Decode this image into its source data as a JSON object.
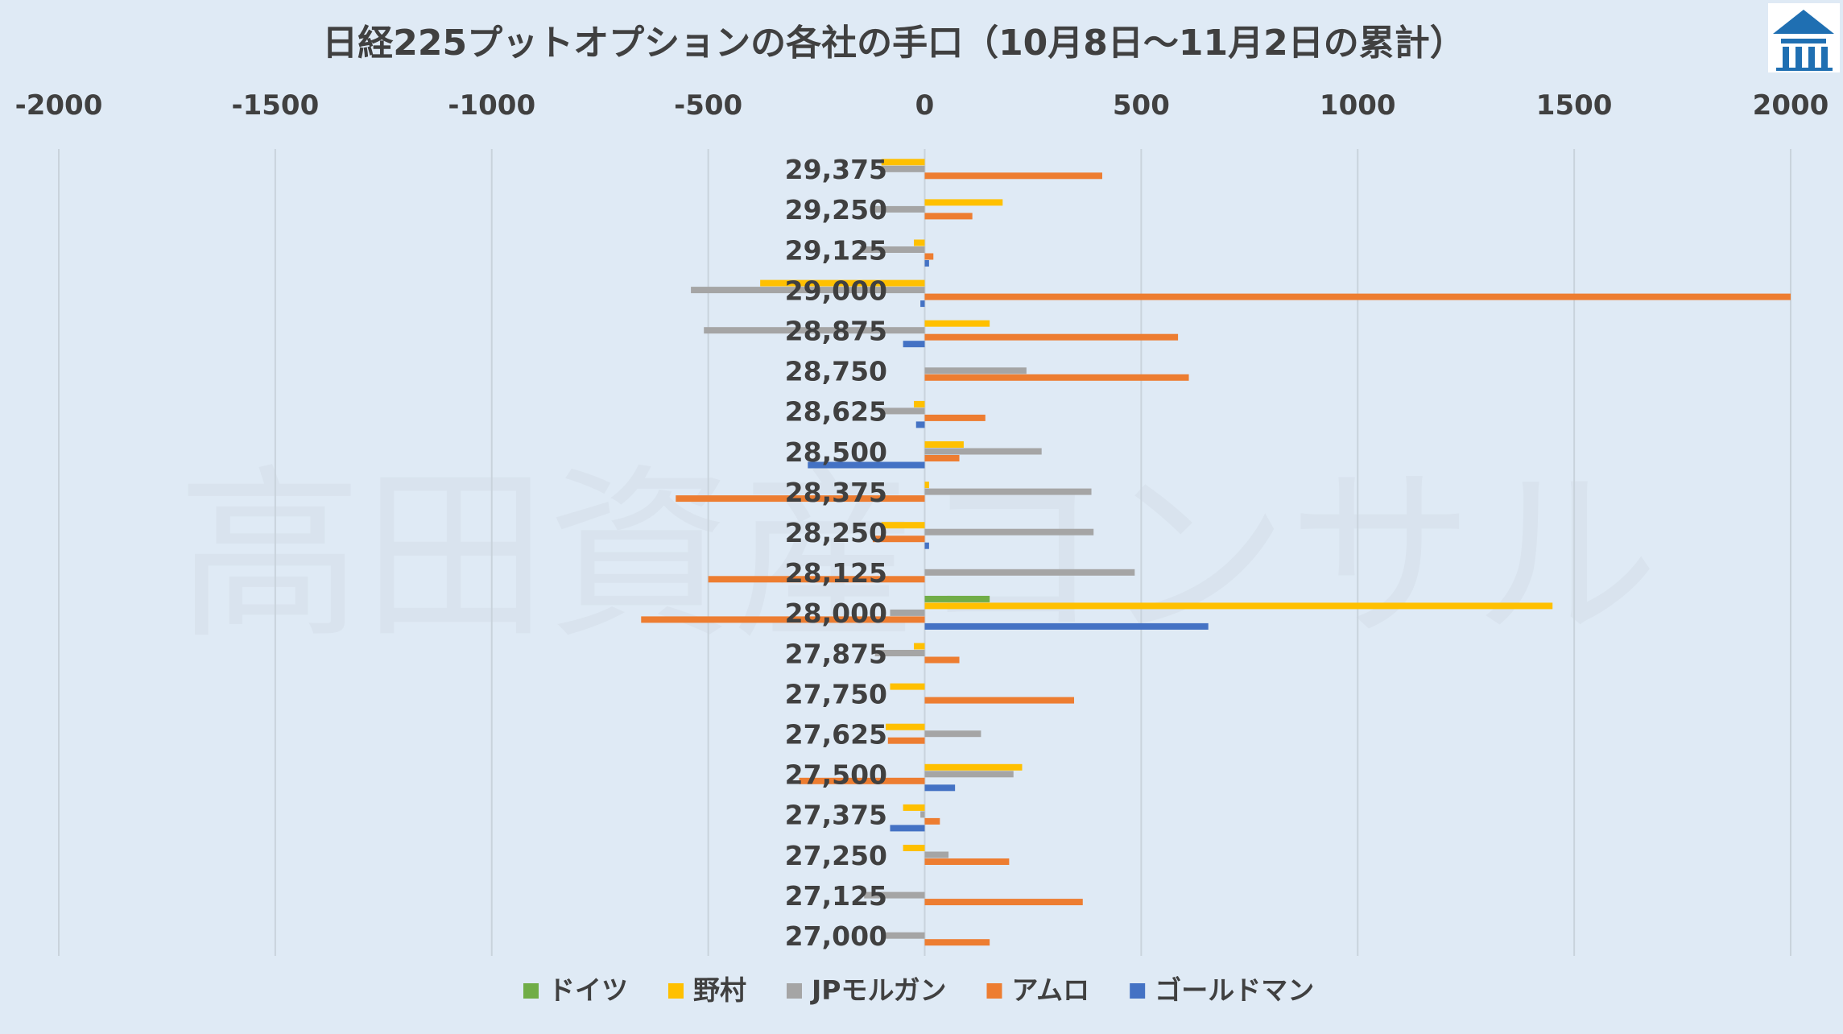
{
  "chart_data": {
    "type": "bar",
    "orientation": "horizontal",
    "title": "日経225プットオプションの各社の手口（10月8日～11月2日の累計）",
    "watermark": "高田資産コンサル",
    "xlim": [
      -2000,
      2000
    ],
    "xticks": [
      -2000,
      -1500,
      -1000,
      -500,
      0,
      500,
      1000,
      1500,
      2000
    ],
    "xtick_labels": [
      "-2000",
      "-1500",
      "-1000",
      "-500",
      "0",
      "500",
      "1000",
      "1500",
      "2000"
    ],
    "axis_position": "top",
    "grid": "vertical",
    "legend_position": "bottom",
    "categories": [
      "29,375",
      "29,250",
      "29,125",
      "29,000",
      "28,875",
      "28,750",
      "28,625",
      "28,500",
      "28,375",
      "28,250",
      "28,125",
      "28,000",
      "27,875",
      "27,750",
      "27,625",
      "27,500",
      "27,375",
      "27,250",
      "27,125",
      "27,000"
    ],
    "series": [
      {
        "name": "ドイツ",
        "color": "#70ad47",
        "values": [
          0,
          0,
          0,
          0,
          0,
          0,
          0,
          0,
          0,
          0,
          0,
          150,
          0,
          0,
          0,
          0,
          0,
          0,
          0,
          0
        ]
      },
      {
        "name": "野村",
        "color": "#ffc000",
        "values": [
          -100,
          180,
          -25,
          -380,
          150,
          0,
          -25,
          90,
          10,
          -100,
          0,
          1450,
          -25,
          -80,
          -90,
          225,
          -50,
          -50,
          0,
          0
        ]
      },
      {
        "name": "JPモルガン",
        "color": "#a5a5a5",
        "values": [
          -100,
          -115,
          -150,
          -540,
          -510,
          235,
          -100,
          270,
          385,
          390,
          485,
          -80,
          -115,
          0,
          130,
          205,
          -10,
          55,
          -140,
          -90
        ]
      },
      {
        "name": "アムロ",
        "color": "#ed7d31",
        "values": [
          410,
          110,
          20,
          2000,
          585,
          610,
          140,
          80,
          -575,
          -120,
          -500,
          -655,
          80,
          345,
          -85,
          -290,
          35,
          195,
          365,
          150
        ]
      },
      {
        "name": "ゴールドマン",
        "color": "#4472c4",
        "values": [
          0,
          0,
          10,
          -10,
          -50,
          0,
          -20,
          -270,
          0,
          10,
          0,
          655,
          0,
          0,
          0,
          70,
          -80,
          0,
          0,
          0
        ]
      }
    ]
  },
  "logo": {
    "icon": "building-logo-icon"
  }
}
